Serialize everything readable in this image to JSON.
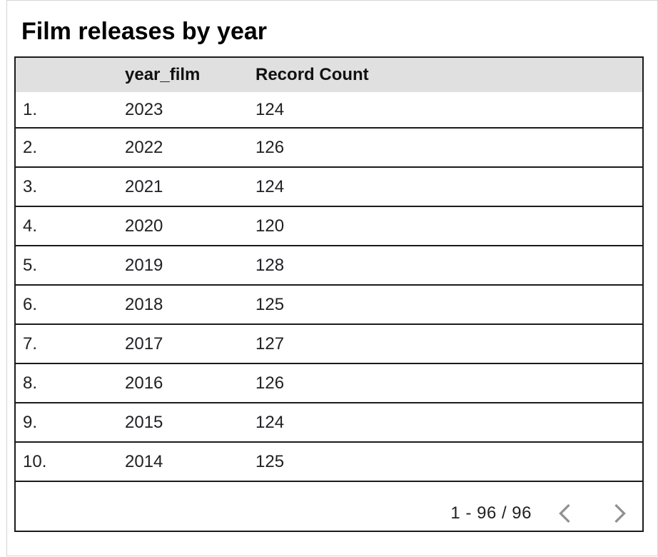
{
  "title": "Film releases by year",
  "table": {
    "headers": [
      "",
      "year_film",
      "Record Count"
    ],
    "rows": [
      {
        "index": "1.",
        "year_film": "2023",
        "record_count": "124"
      },
      {
        "index": "2.",
        "year_film": "2022",
        "record_count": "126"
      },
      {
        "index": "3.",
        "year_film": "2021",
        "record_count": "124"
      },
      {
        "index": "4.",
        "year_film": "2020",
        "record_count": "120"
      },
      {
        "index": "5.",
        "year_film": "2019",
        "record_count": "128"
      },
      {
        "index": "6.",
        "year_film": "2018",
        "record_count": "125"
      },
      {
        "index": "7.",
        "year_film": "2017",
        "record_count": "127"
      },
      {
        "index": "8.",
        "year_film": "2016",
        "record_count": "126"
      },
      {
        "index": "9.",
        "year_film": "2015",
        "record_count": "124"
      },
      {
        "index": "10.",
        "year_film": "2014",
        "record_count": "125"
      }
    ],
    "pagination": {
      "range": "1 - 96 / 96",
      "prev_icon": "chevron-left",
      "next_icon": "chevron-right"
    }
  },
  "colors": {
    "header_bg": "#e0e0e0",
    "table_border": "#1b1b1b",
    "text": "#202124",
    "chevron": "#8f9193",
    "frame_border": "#d4d4d4"
  },
  "chart_data": {
    "type": "table",
    "title": "Film releases by year",
    "columns": [
      "year_film",
      "Record Count"
    ],
    "rows": [
      [
        2023,
        124
      ],
      [
        2022,
        126
      ],
      [
        2021,
        124
      ],
      [
        2020,
        120
      ],
      [
        2019,
        128
      ],
      [
        2018,
        125
      ],
      [
        2017,
        127
      ],
      [
        2016,
        126
      ],
      [
        2015,
        124
      ],
      [
        2014,
        125
      ]
    ],
    "visible_range": "1 - 96 / 96",
    "total_records": 96,
    "layout": {
      "header_background": "#e0e0e0",
      "row_numbers": true,
      "pagination": true
    }
  }
}
